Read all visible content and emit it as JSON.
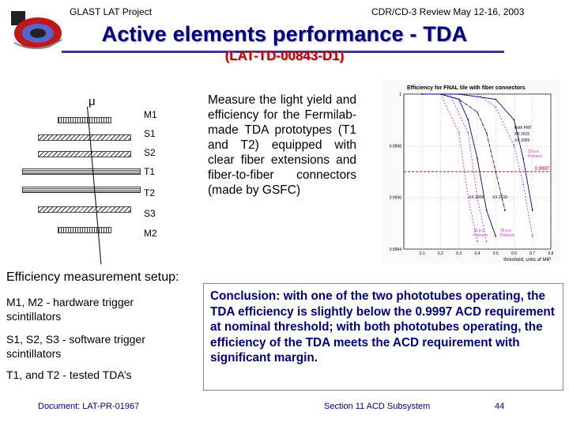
{
  "header": {
    "left": "GLAST LAT Project",
    "right": "CDR/CD-3 Review May 12-16, 2003"
  },
  "title": "Active elements performance - TDA",
  "subtitle": "(LAT-TD-00843-D1)",
  "diagram": {
    "particle": "μ",
    "labels": [
      "M1",
      "S1",
      "S2",
      "T1",
      "T2",
      "S3",
      "M2"
    ]
  },
  "description": "Measure the light yield and efficiency for the Fermilab-made TDA prototypes (T1 and T2) equipped with clear fiber extensions and fiber-to-fiber connectors (made by GSFC)",
  "chart_data": {
    "type": "line",
    "title": "Efficiency for FNAL tile with fiber connectors",
    "xlabel": "threshold, units of MIP",
    "ylabel": "",
    "xlim": [
      0,
      0.8
    ],
    "ylim": [
      0.9994,
      1.0
    ],
    "x_ticks": [
      "0.1",
      "0.2",
      "0.3",
      "0.4",
      "0.5",
      "0.6",
      "0.7",
      "0.8"
    ],
    "y_ticks": [
      "1",
      "0.9998",
      "0.9996",
      "0.9994"
    ],
    "reference_line": {
      "label": "0.9997",
      "y": 0.9997
    },
    "series": [
      {
        "name": "XX 2615",
        "x": [
          0.1,
          0.2,
          0.3,
          0.35,
          0.4,
          0.45,
          0.5
        ],
        "y": [
          1.0,
          1.0,
          0.99998,
          0.9999,
          0.99975,
          0.99955,
          0.99945
        ]
      },
      {
        "name": "XX 2009",
        "x": [
          0.1,
          0.2,
          0.3,
          0.4,
          0.45,
          0.5,
          0.55
        ],
        "y": [
          1.0,
          1.0,
          0.99998,
          0.99993,
          0.99985,
          0.9997,
          0.99955
        ]
      },
      {
        "name": "Both PMT",
        "x": [
          0.1,
          0.3,
          0.5,
          0.6,
          0.65,
          0.7
        ],
        "y": [
          1.0,
          1.0,
          0.99998,
          0.9999,
          0.99975,
          0.99955
        ]
      },
      {
        "name": "15 p.e. Poisson",
        "x": [
          0.2,
          0.3,
          0.35,
          0.4
        ],
        "y": [
          1.0,
          0.99985,
          0.9996,
          0.99943
        ]
      },
      {
        "name": "16 p.e. Poisson",
        "x": [
          0.25,
          0.35,
          0.4,
          0.45
        ],
        "y": [
          1.0,
          0.99985,
          0.9996,
          0.99943
        ]
      },
      {
        "name": "23 p.e. Poisson",
        "x": [
          0.4,
          0.5,
          0.6,
          0.65,
          0.7
        ],
        "y": [
          1.0,
          0.99995,
          0.9998,
          0.99965,
          0.99945
        ]
      }
    ],
    "annotations": [
      "Both PMT",
      "XX 2615",
      "XX 2009",
      "23 p.e. Poisson",
      "XX 2009",
      "XX 2615",
      "15 p.e. Poisson",
      "16 p.e. Poisson"
    ]
  },
  "setup": {
    "heading": "Efficiency measurement setup:",
    "items": [
      "M1, M2 - hardware trigger scintillators",
      "S1, S2, S3 - software trigger scintillators",
      "T1, and T2 - tested TDA’s"
    ]
  },
  "conclusion": "Conclusion:  with one of the two phototubes operating, the TDA efficiency is slightly below the 0.9997 ACD requirement at nominal threshold; with both phototubes operating, the efficiency of the TDA meets the ACD requirement with significant margin.",
  "footer": {
    "document": "Document:  LAT-PR-01967",
    "section": "Section 11 ACD Subsystem",
    "page": "44"
  },
  "colors": {
    "title": "#000080",
    "subtitle": "#c00000",
    "conclusion": "#000080",
    "series_main": "#000080",
    "series_poisson": "#cc33cc",
    "reference": "#cc0000"
  }
}
